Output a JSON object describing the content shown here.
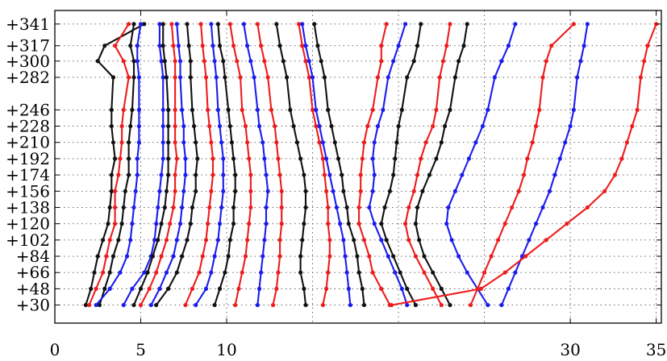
{
  "chart_data": {
    "type": "line",
    "title": "",
    "xlabel": "",
    "ylabel": "",
    "xlim": [
      0,
      35.3
    ],
    "ylim": [
      10,
      356
    ],
    "grid": true,
    "x_ticks": [
      0,
      5,
      10,
      30,
      35
    ],
    "x_tick_labels": [
      "0",
      "5",
      "10",
      "30",
      "35"
    ],
    "y_ticks": [
      30,
      48,
      66,
      84,
      102,
      120,
      138,
      156,
      174,
      192,
      210,
      228,
      246,
      282,
      300,
      317,
      341
    ],
    "y_tick_labels": [
      "+30",
      "+48",
      "+66",
      "+84",
      "+102",
      "+120",
      "+138",
      "+156",
      "+174",
      "+192",
      "+210",
      "+228",
      "+246",
      "+282",
      "+300",
      "+317",
      "+341"
    ],
    "y_levels": [
      30,
      48,
      66,
      84,
      102,
      120,
      138,
      156,
      174,
      192,
      210,
      228,
      246,
      282,
      300,
      317,
      341
    ],
    "colors": {
      "red": "#ee1c1c",
      "blue": "#1c1cee",
      "black": "#111111"
    },
    "series": [
      {
        "color": "black",
        "values": [
          1.8,
          2.1,
          2.3,
          2.5,
          2.8,
          3.1,
          3.2,
          3.3,
          3.3,
          3.5,
          3.4,
          3.3,
          3.3,
          3.4,
          2.5,
          2.9,
          5.2
        ]
      },
      {
        "color": "red",
        "values": [
          2.0,
          2.4,
          2.8,
          3.0,
          3.2,
          3.5,
          3.5,
          3.5,
          3.7,
          3.8,
          3.9,
          3.9,
          4.0,
          4.3,
          4.0,
          3.5,
          4.3
        ]
      },
      {
        "color": "black",
        "values": [
          2.6,
          2.9,
          3.2,
          3.4,
          3.7,
          3.9,
          4.0,
          4.1,
          4.3,
          4.3,
          4.3,
          4.4,
          4.5,
          4.6,
          4.6,
          4.4,
          4.6
        ]
      },
      {
        "color": "blue",
        "values": [
          2.4,
          3.2,
          3.8,
          4.2,
          4.4,
          4.5,
          4.6,
          4.7,
          4.8,
          4.8,
          4.9,
          4.9,
          4.9,
          4.9,
          4.8,
          4.8,
          5.0
        ]
      },
      {
        "color": "blue",
        "values": [
          4.0,
          4.5,
          5.2,
          5.6,
          5.8,
          5.9,
          6.0,
          6.1,
          6.2,
          6.3,
          6.3,
          6.3,
          6.3,
          6.3,
          6.2,
          6.1,
          6.1
        ]
      },
      {
        "color": "black",
        "values": [
          4.6,
          5.0,
          5.4,
          5.7,
          6.0,
          6.2,
          6.4,
          6.5,
          6.6,
          6.6,
          6.6,
          6.6,
          6.6,
          6.5,
          6.4,
          6.3,
          6.3
        ]
      },
      {
        "color": "red",
        "values": [
          5.0,
          5.5,
          5.9,
          6.2,
          6.5,
          6.7,
          6.9,
          7.0,
          7.0,
          7.1,
          7.0,
          7.0,
          7.0,
          7.0,
          7.0,
          6.9,
          6.8
        ]
      },
      {
        "color": "blue",
        "values": [
          5.6,
          6.1,
          6.5,
          6.9,
          7.1,
          7.3,
          7.4,
          7.5,
          7.6,
          7.6,
          7.5,
          7.5,
          7.4,
          7.3,
          7.3,
          7.2,
          7.1
        ]
      },
      {
        "color": "black",
        "values": [
          5.9,
          6.6,
          7.1,
          7.4,
          7.7,
          7.9,
          8.0,
          8.2,
          8.2,
          8.3,
          8.2,
          8.1,
          8.0,
          7.9,
          7.9,
          7.8,
          7.7
        ]
      },
      {
        "color": "red",
        "values": [
          7.6,
          8.0,
          8.4,
          8.6,
          8.8,
          8.9,
          9.0,
          9.1,
          9.2,
          9.2,
          9.1,
          9.0,
          8.9,
          8.8,
          8.7,
          8.6,
          8.5
        ]
      },
      {
        "color": "blue",
        "values": [
          8.2,
          8.8,
          9.1,
          9.3,
          9.5,
          9.6,
          9.7,
          9.8,
          9.8,
          9.8,
          9.7,
          9.6,
          9.5,
          9.4,
          9.3,
          9.2,
          9.1
        ]
      },
      {
        "color": "black",
        "values": [
          9.3,
          9.6,
          9.9,
          10.1,
          10.2,
          10.4,
          10.4,
          10.5,
          10.5,
          10.4,
          10.3,
          10.2,
          10.1,
          9.9,
          9.8,
          9.6,
          9.5
        ]
      },
      {
        "color": "red",
        "values": [
          10.5,
          10.7,
          10.9,
          11.1,
          11.2,
          11.3,
          11.4,
          11.4,
          11.4,
          11.3,
          11.2,
          11.1,
          10.9,
          10.8,
          10.6,
          10.4,
          10.2
        ]
      },
      {
        "color": "blue",
        "values": [
          11.8,
          11.9,
          12.0,
          12.1,
          12.2,
          12.3,
          12.3,
          12.4,
          12.3,
          12.2,
          12.1,
          11.9,
          11.8,
          11.6,
          11.4,
          11.2,
          11.0
        ]
      },
      {
        "color": "red",
        "values": [
          12.7,
          12.9,
          13.0,
          13.1,
          13.1,
          13.2,
          13.2,
          13.2,
          13.1,
          13.0,
          12.9,
          12.8,
          12.6,
          12.4,
          12.2,
          12.0,
          11.8
        ]
      },
      {
        "color": "black",
        "values": [
          14.6,
          14.5,
          14.3,
          14.3,
          14.4,
          14.5,
          14.6,
          14.6,
          14.5,
          14.3,
          14.1,
          13.9,
          13.7,
          13.5,
          13.3,
          13.1,
          12.9
        ]
      },
      {
        "color": "red",
        "values": [
          15.6,
          15.8,
          15.9,
          16.0,
          16.0,
          15.9,
          15.9,
          15.8,
          15.7,
          15.6,
          15.4,
          15.2,
          15.0,
          14.8,
          14.6,
          14.4,
          14.2
        ]
      },
      {
        "color": "blue",
        "values": [
          17.2,
          17.1,
          17.0,
          16.9,
          16.8,
          16.6,
          16.4,
          16.2,
          16.0,
          15.8,
          15.6,
          15.4,
          15.2,
          15.0,
          14.8,
          14.6,
          14.4
        ]
      },
      {
        "color": "black",
        "values": [
          18.0,
          17.9,
          17.7,
          17.6,
          17.4,
          17.1,
          17.0,
          16.8,
          16.7,
          16.5,
          16.3,
          16.1,
          15.9,
          15.7,
          15.5,
          15.3,
          15.1
        ]
      },
      {
        "color": "red",
        "values": [
          19.5,
          19.0,
          18.5,
          18.3,
          18.0,
          17.7,
          17.7,
          17.8,
          17.8,
          17.9,
          18.0,
          18.2,
          18.5,
          18.8,
          19.0,
          19.0,
          19.3
        ]
      },
      {
        "color": "blue",
        "values": [
          20.5,
          20.2,
          19.8,
          19.4,
          19.0,
          18.6,
          18.3,
          18.5,
          18.6,
          18.5,
          18.6,
          18.8,
          19.1,
          19.4,
          19.7,
          20.0,
          20.4
        ]
      },
      {
        "color": "black",
        "values": [
          21.0,
          20.5,
          20.1,
          19.7,
          19.3,
          19.0,
          19.2,
          19.5,
          19.7,
          19.8,
          19.9,
          20.0,
          20.2,
          20.5,
          20.9,
          21.1,
          21.3
        ]
      },
      {
        "color": "red",
        "values": [
          22.5,
          22.0,
          21.5,
          21.0,
          20.6,
          20.4,
          20.6,
          20.9,
          21.1,
          21.3,
          21.6,
          22.0,
          22.2,
          22.4,
          22.6,
          22.8,
          23.0
        ]
      },
      {
        "color": "black",
        "values": [
          23.0,
          22.5,
          22.0,
          21.5,
          21.2,
          21.0,
          21.1,
          21.4,
          21.8,
          22.2,
          22.5,
          22.7,
          23.0,
          23.3,
          23.5,
          23.8,
          24.0
        ]
      },
      {
        "color": "blue",
        "values": [
          25.2,
          24.6,
          24.0,
          23.5,
          23.1,
          22.8,
          22.9,
          23.3,
          23.7,
          24.1,
          24.5,
          24.9,
          25.2,
          25.6,
          26.0,
          26.4,
          26.8
        ]
      },
      {
        "color": "red",
        "values": [
          24.2,
          24.6,
          25.0,
          25.4,
          25.8,
          26.2,
          26.6,
          27.0,
          27.3,
          27.5,
          27.8,
          28.0,
          28.2,
          28.4,
          28.6,
          28.9,
          30.2
        ]
      },
      {
        "color": "blue",
        "values": [
          26.0,
          26.4,
          26.8,
          27.2,
          27.6,
          28.0,
          28.4,
          28.8,
          29.1,
          29.4,
          29.7,
          30.0,
          30.2,
          30.4,
          30.6,
          30.8,
          31.0
        ]
      },
      {
        "color": "red",
        "values": [
          19.6,
          24.8,
          26.2,
          27.4,
          28.6,
          29.8,
          31.0,
          32.0,
          32.6,
          33.0,
          33.3,
          33.6,
          33.9,
          34.1,
          34.3,
          34.5,
          35.0
        ]
      }
    ]
  }
}
